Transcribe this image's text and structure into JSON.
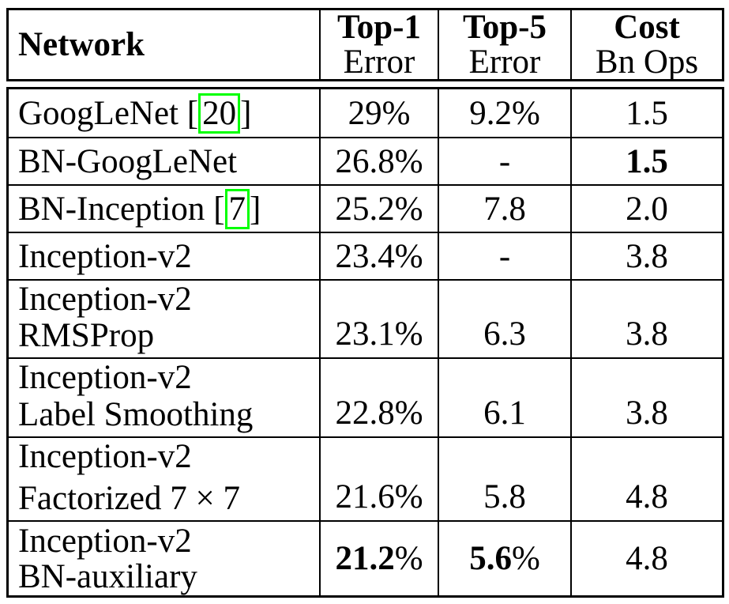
{
  "page": {
    "background_color": "#ffffff",
    "text_color": "#000000",
    "citation_link_box_color": "#00ff00"
  },
  "table": {
    "header": {
      "network_label": "Network",
      "columns": [
        {
          "title": "Top-1",
          "subtitle": "Error"
        },
        {
          "title": "Top-5",
          "subtitle": "Error"
        },
        {
          "title": "Cost",
          "subtitle": "Bn Ops"
        }
      ]
    },
    "rows": [
      {
        "name": "GoogLeNet",
        "cite_open": "[",
        "cite": "20",
        "cite_close": "]",
        "top1": "29%",
        "top5": "9.2%",
        "cost": "1.5"
      },
      {
        "name": "BN-GoogLeNet",
        "top1": "26.8%",
        "top5": "-",
        "cost": "1.5"
      },
      {
        "name": "BN-Inception",
        "cite_open": "[",
        "cite": "7",
        "cite_close": "]",
        "top1": "25.2%",
        "top5": "7.8",
        "cost": "2.0"
      },
      {
        "name": "Inception-v2",
        "top1": "23.4%",
        "top5": "-",
        "cost": "3.8"
      },
      {
        "name_line1": "Inception-v2",
        "name_line2": "RMSProp",
        "top1": "23.1%",
        "top5": "6.3",
        "cost": "3.8"
      },
      {
        "name_line1": "Inception-v2",
        "name_line2": "Label Smoothing",
        "top1": "22.8%",
        "top5": "6.1",
        "cost": "3.8"
      },
      {
        "name_line1": "Inception-v2",
        "name_line2": "Factorized 7 × 7",
        "top1": "21.6%",
        "top5": "5.8",
        "cost": "4.8"
      },
      {
        "name_line1": "Inception-v2",
        "name_line2": "BN-auxiliary",
        "top1_value": "21.2",
        "top1_suffix": "%",
        "top5_value": "5.6",
        "top5_suffix": "%",
        "cost": "4.8"
      }
    ]
  }
}
